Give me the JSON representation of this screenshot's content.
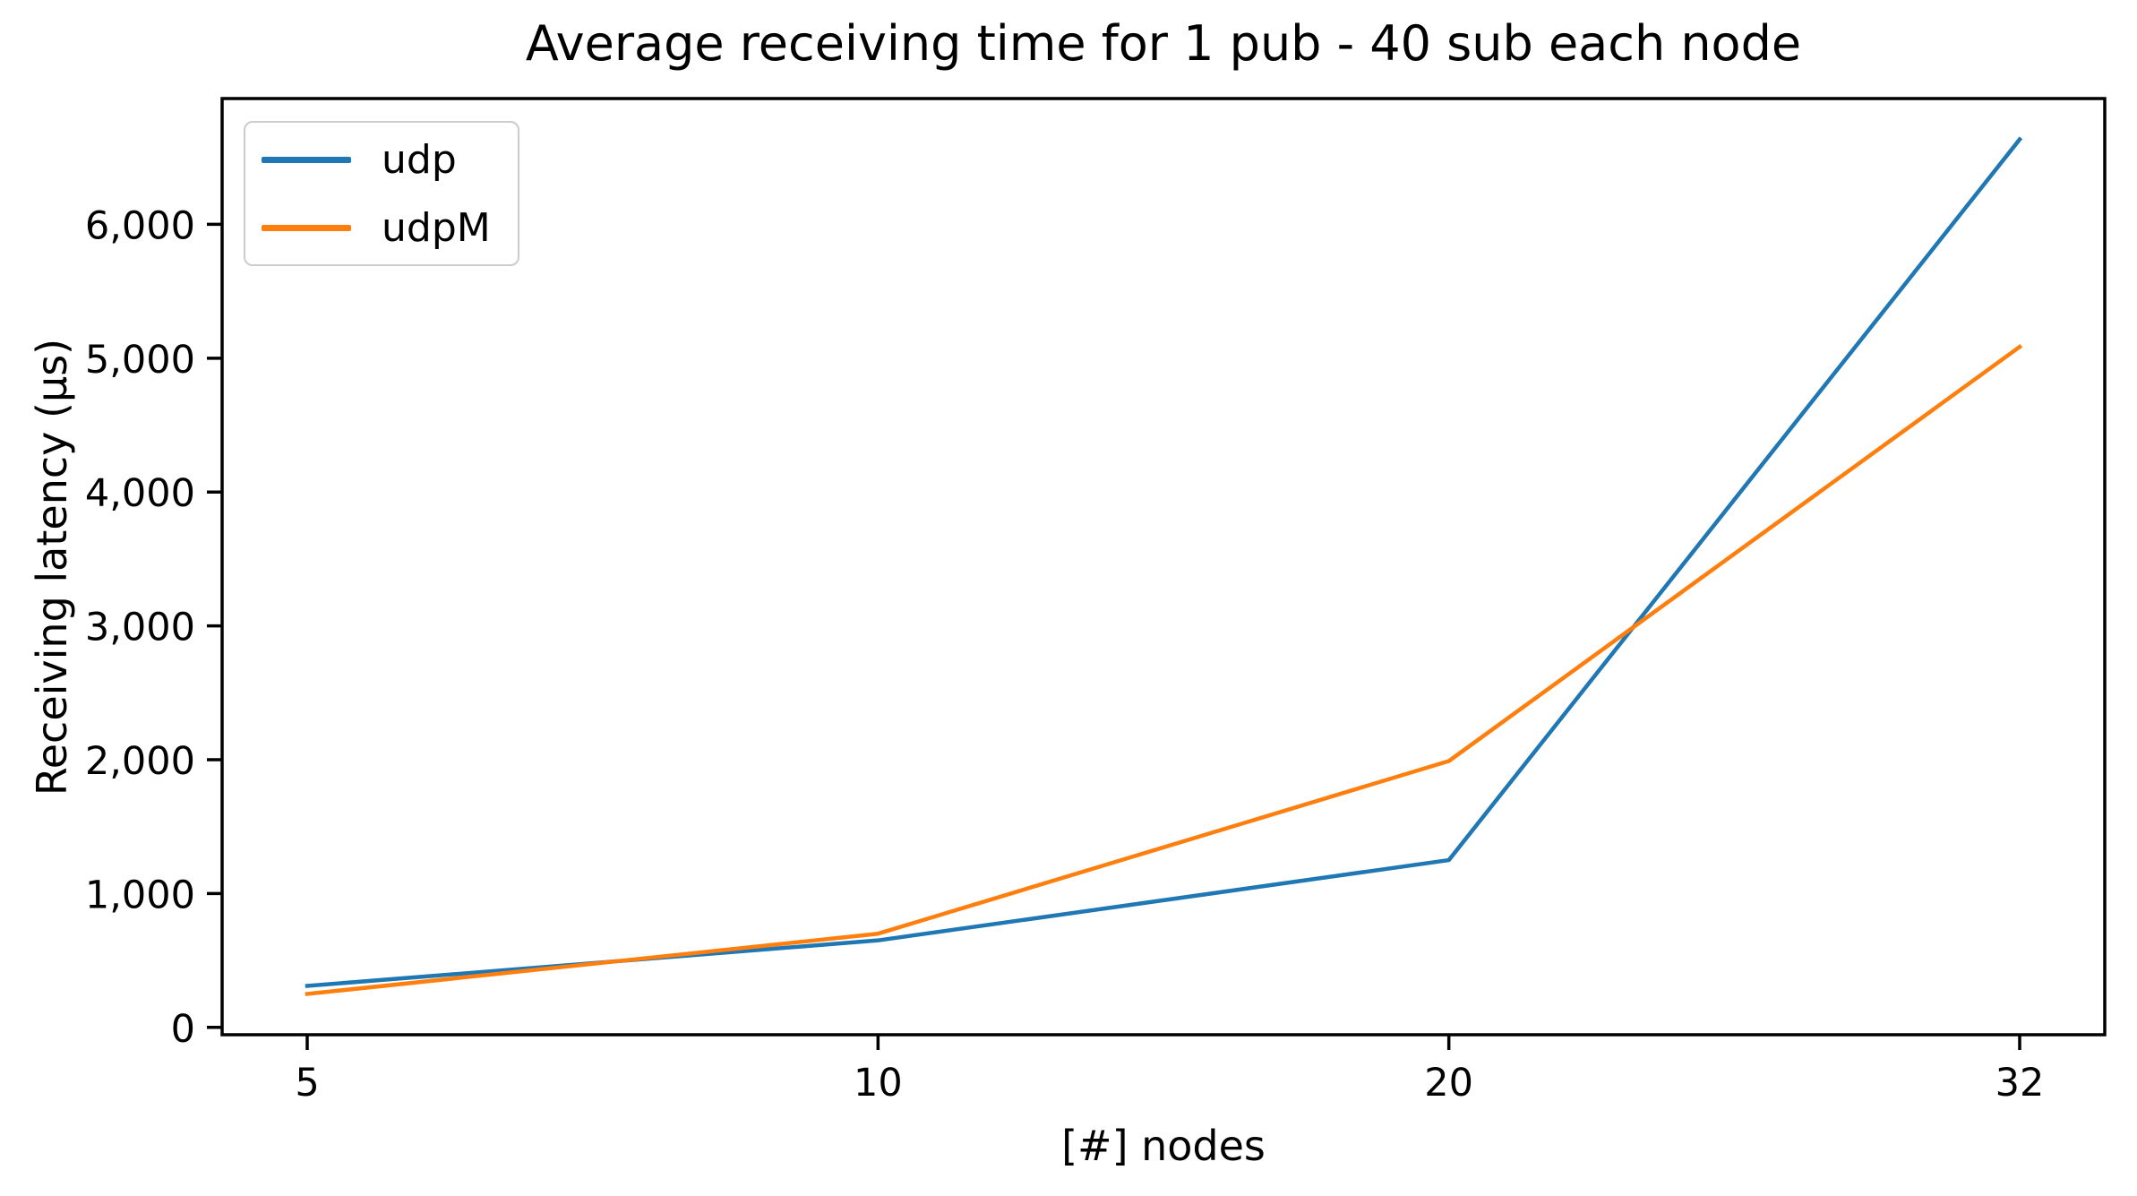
{
  "figure": {
    "background_color": "#ffffff",
    "spine_color": "#000000",
    "legend_border_color": "#cccccc"
  },
  "chart_data": {
    "type": "line",
    "title": "Average receiving time for 1 pub - 40 sub each node",
    "xlabel": "[#] nodes",
    "ylabel": "Receiving latency (µs)",
    "categories": [
      "5",
      "10",
      "20",
      "32"
    ],
    "series": [
      {
        "name": "udp",
        "color": "#1f77b4",
        "values": [
          310,
          650,
          1250,
          6635
        ]
      },
      {
        "name": "udpM",
        "color": "#ff7f0e",
        "values": [
          250,
          700,
          1990,
          5085
        ]
      }
    ],
    "yticks": [
      0,
      1000,
      2000,
      3000,
      4000,
      5000,
      6000
    ],
    "ytick_labels": [
      "0",
      "1,000",
      "2,000",
      "3,000",
      "4,000",
      "5,000",
      "6,000"
    ],
    "ylim": [
      -55,
      6940
    ],
    "grid": false,
    "legend_position": "upper left",
    "x_axis_spacing": "categorical-even"
  }
}
